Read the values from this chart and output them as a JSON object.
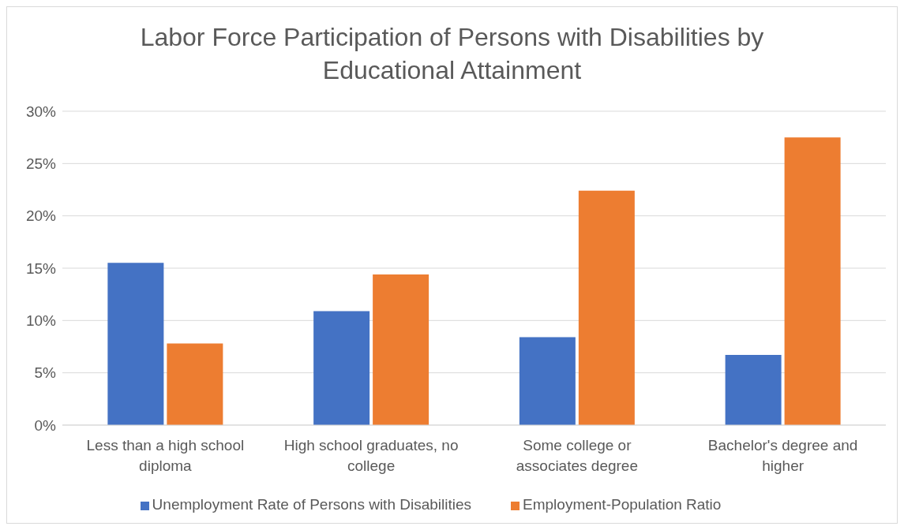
{
  "chart_data": {
    "type": "bar",
    "title": "Labor Force Participation of Persons with Disabilities by Educational Attainment",
    "categories": [
      "Less than a high school diploma",
      "High school graduates, no college",
      "Some college or associates degree",
      "Bachelor's degree and higher"
    ],
    "series": [
      {
        "name": "Unemployment Rate of Persons with Disabilities",
        "color": "#4472c4",
        "values": [
          15.5,
          10.9,
          8.4,
          6.7
        ]
      },
      {
        "name": "Employment-Population Ratio",
        "color": "#ed7d31",
        "values": [
          7.8,
          14.4,
          22.4,
          27.5
        ]
      }
    ],
    "ylim": [
      0,
      30
    ],
    "yticks": [
      {
        "value": 0,
        "label": "0%"
      },
      {
        "value": 5,
        "label": "5%"
      },
      {
        "value": 10,
        "label": "10%"
      },
      {
        "value": 15,
        "label": "15%"
      },
      {
        "value": 20,
        "label": "20%"
      },
      {
        "value": 25,
        "label": "25%"
      },
      {
        "value": 30,
        "label": "30%"
      }
    ],
    "grid": "y",
    "legend": "bottom"
  }
}
